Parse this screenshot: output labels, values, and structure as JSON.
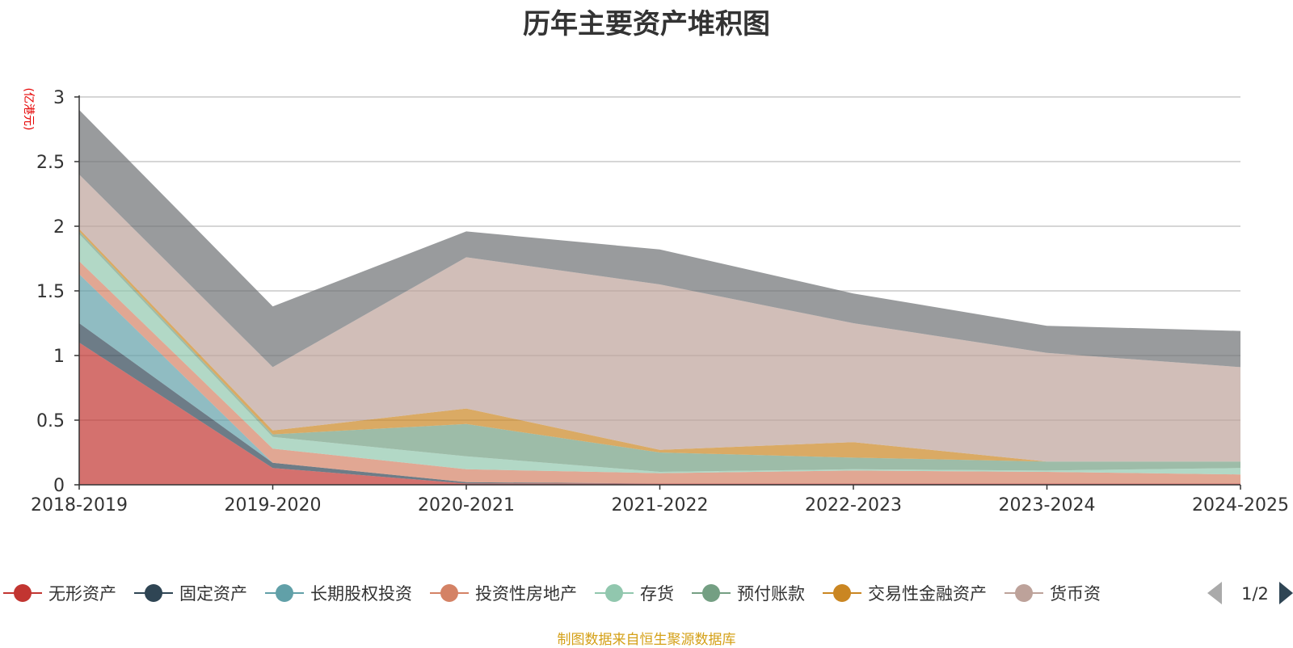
{
  "chart_data": {
    "type": "area",
    "stacked": true,
    "title": "历年主要资产堆积图",
    "y_unit_label": "(亿港元)",
    "ylim": [
      0,
      3
    ],
    "y_ticks": [
      "0",
      "0.5",
      "1",
      "1.5",
      "2",
      "2.5",
      "3"
    ],
    "categories": [
      "2018-2019",
      "2019-2020",
      "2020-2021",
      "2021-2022",
      "2022-2023",
      "2023-2024",
      "2024-2025"
    ],
    "grid": true,
    "legend_position": "bottom",
    "series": [
      {
        "name": "无形资产",
        "color": "#c23531",
        "values": [
          1.1,
          0.13,
          0.01,
          0.01,
          0.01,
          0.01,
          0.01
        ]
      },
      {
        "name": "固定资产",
        "color": "#2f4554",
        "values": [
          0.15,
          0.04,
          0.01,
          0.0,
          0.0,
          0.0,
          0.0
        ]
      },
      {
        "name": "长期股权投资",
        "color": "#61a0a8",
        "values": [
          0.38,
          0.0,
          0.0,
          0.0,
          0.0,
          0.0,
          0.0
        ]
      },
      {
        "name": "投资性房地产",
        "color": "#d48265",
        "values": [
          0.1,
          0.11,
          0.1,
          0.08,
          0.1,
          0.09,
          0.07
        ]
      },
      {
        "name": "存货",
        "color": "#91c7ae",
        "values": [
          0.21,
          0.09,
          0.1,
          0.01,
          0.01,
          0.01,
          0.05
        ]
      },
      {
        "name": "预付账款",
        "color": "#749f83",
        "values": [
          0.02,
          0.02,
          0.25,
          0.15,
          0.09,
          0.07,
          0.05
        ]
      },
      {
        "name": "交易性金融资产",
        "color": "#ca8622",
        "values": [
          0.02,
          0.03,
          0.12,
          0.02,
          0.12,
          0.0,
          0.0
        ]
      },
      {
        "name": "货币资金",
        "color": "#bda29a",
        "values": [
          0.42,
          0.49,
          1.17,
          1.28,
          0.92,
          0.84,
          0.73
        ]
      },
      {
        "name": "",
        "color": "#6e7074",
        "values": [
          0.5,
          0.47,
          0.2,
          0.27,
          0.23,
          0.21,
          0.28
        ]
      }
    ],
    "legend": {
      "visible_entries": [
        "无形资产",
        "固定资产",
        "长期股权投资",
        "投资性房地产",
        "存货",
        "预付账款",
        "交易性金融资产",
        "货币资"
      ],
      "page_indicator": "1/2"
    },
    "source_note": "制图数据来自恒生聚源数据库"
  }
}
